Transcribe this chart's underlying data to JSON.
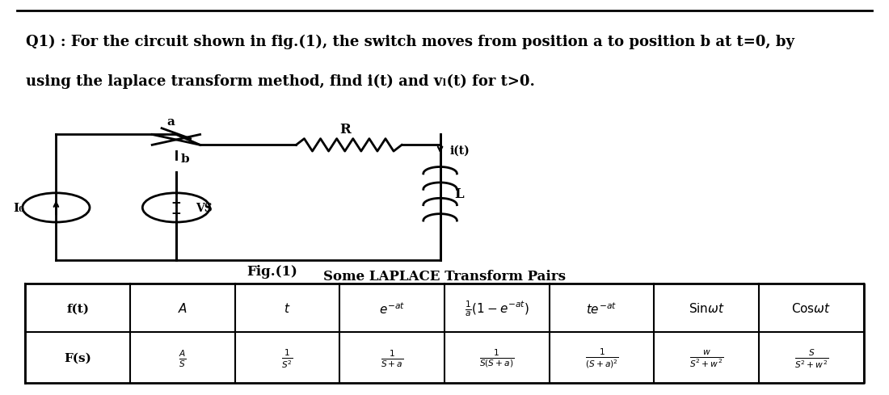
{
  "title_line1": "Q1) : For the circuit shown in fig.(1), the switch moves from position a to position b at t=0, by",
  "title_line2": "using the laplace transform method, find i(t) and vₗ(t) for t>0.",
  "fig_label": "Fig.(1)",
  "table_title": "Some LAPLACE Transform Pairs",
  "row1_header": "f(t)",
  "row2_header": "F(s)",
  "col_ft": [
    "A",
    "t",
    "e^{-at}",
    "\\frac{1}{a}(1-e^{-at})",
    "te^{-at}",
    "\\sin\\omega t",
    "\\cos\\omega t"
  ],
  "col_Fs": [
    "\\frac{A}{S}",
    "\\frac{1}{S^2}",
    "\\frac{1}{S+a}",
    "\\frac{1}{S(S+a)}",
    "\\frac{1}{(S+a)^2}",
    "\\frac{w}{S^2+w^2}",
    "\\frac{S}{S^2+w^2}"
  ],
  "bg_color": "#ffffff",
  "text_color": "#000000",
  "border_color": "#000000",
  "font_size_title": 13,
  "font_size_table": 11,
  "circuit_labels": {
    "a": "a",
    "b": "b",
    "R": "R",
    "L": "L",
    "i_t": "i(t)",
    "I0": "I₀",
    "VS": "VS"
  }
}
